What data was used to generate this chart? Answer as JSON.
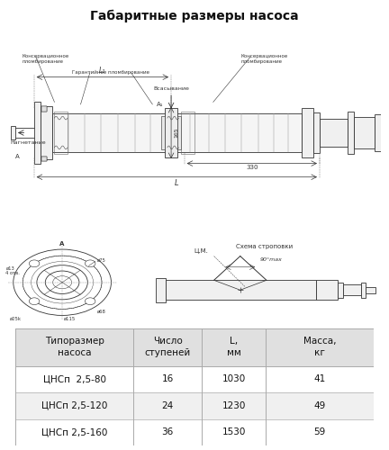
{
  "title": "Габаритные размеры насоса",
  "title_fontsize": 10,
  "bg_color": "#ffffff",
  "table_header_bg": "#e0e0e0",
  "table_row_bg": "#ffffff",
  "table_alt_row_bg": "#f0f0f0",
  "table_headers": [
    "Типоразмер\nнасоса",
    "Число\nступеней",
    "L,\nмм",
    "Масса,\nкг"
  ],
  "table_rows": [
    [
      "ЦНСп  2,5-80",
      "16",
      "1030",
      "41"
    ],
    [
      "ЦНСп 2,5-120",
      "24",
      "1230",
      "49"
    ],
    [
      "ЦНСп 2,5-160",
      "36",
      "1530",
      "59"
    ]
  ],
  "line_color": "#333333",
  "table_fontsize": 7.5,
  "annot_fontsize": 4.5
}
